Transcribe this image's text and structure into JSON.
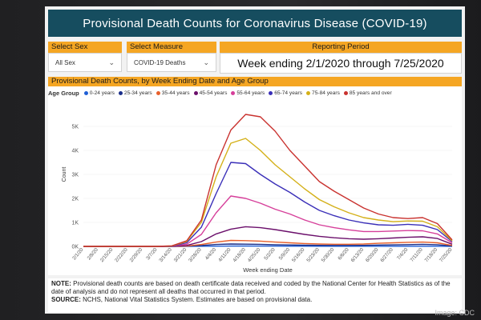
{
  "header": {
    "title": "Provisional Death Counts for Coronavirus Disease (COVID-19)"
  },
  "filters": {
    "sex": {
      "label": "Select Sex",
      "value": "All Sex"
    },
    "measure": {
      "label": "Select Measure",
      "value": "COVID-19 Deaths"
    },
    "period": {
      "label": "Reporting Period",
      "value": "Week ending 2/1/2020 through 7/25/2020"
    }
  },
  "chart_data": {
    "type": "line",
    "title": "Provisional Death Counts, by Week Ending Date and Age Group",
    "legend_title": "Age Group",
    "xlabel": "Week ending Date",
    "ylabel": "Count",
    "ylim": [
      0,
      6000
    ],
    "yticks": [
      {
        "value": 0,
        "label": "0K"
      },
      {
        "value": 1000,
        "label": "1K"
      },
      {
        "value": 2000,
        "label": "2K"
      },
      {
        "value": 3000,
        "label": "3K"
      },
      {
        "value": 4000,
        "label": "4K"
      },
      {
        "value": 5000,
        "label": "5K"
      }
    ],
    "x": [
      "2/1/20",
      "2/8/20",
      "2/15/20",
      "2/22/20",
      "2/29/20",
      "3/7/20",
      "3/14/20",
      "3/21/20",
      "3/28/20",
      "4/4/20",
      "4/11/20",
      "4/18/20",
      "4/25/20",
      "5/2/20",
      "5/9/20",
      "5/16/20",
      "5/23/20",
      "5/30/20",
      "6/6/20",
      "6/13/20",
      "6/20/20",
      "6/27/20",
      "7/4/20",
      "7/11/20",
      "7/18/20",
      "7/25/20"
    ],
    "series": [
      {
        "name": "0-24 years",
        "color": "#1f5fd6",
        "values": [
          0,
          0,
          0,
          0,
          0,
          0,
          0,
          2,
          5,
          10,
          15,
          18,
          15,
          13,
          10,
          10,
          8,
          7,
          6,
          6,
          7,
          8,
          8,
          8,
          7,
          3
        ]
      },
      {
        "name": "25-34 years",
        "color": "#1a2e8a",
        "values": [
          0,
          0,
          0,
          0,
          0,
          0,
          1,
          8,
          35,
          80,
          100,
          95,
          85,
          70,
          60,
          50,
          45,
          40,
          40,
          45,
          55,
          65,
          75,
          85,
          70,
          20
        ]
      },
      {
        "name": "35-44 years",
        "color": "#e8602c",
        "values": [
          0,
          0,
          0,
          0,
          0,
          0,
          2,
          15,
          80,
          180,
          250,
          240,
          220,
          180,
          150,
          120,
          100,
          90,
          90,
          100,
          130,
          150,
          170,
          180,
          150,
          40
        ]
      },
      {
        "name": "45-54 years",
        "color": "#6b0f6b",
        "values": [
          0,
          0,
          0,
          0,
          0,
          0,
          5,
          40,
          200,
          520,
          720,
          820,
          780,
          700,
          600,
          500,
          420,
          360,
          320,
          300,
          320,
          350,
          380,
          400,
          330,
          90
        ]
      },
      {
        "name": "55-64 years",
        "color": "#d63f9a",
        "values": [
          0,
          0,
          0,
          0,
          0,
          0,
          10,
          90,
          500,
          1400,
          2100,
          2000,
          1800,
          1550,
          1350,
          1100,
          900,
          780,
          690,
          620,
          620,
          640,
          660,
          650,
          520,
          150
        ]
      },
      {
        "name": "65-74 years",
        "color": "#3a2fb8",
        "values": [
          0,
          0,
          0,
          0,
          0,
          1,
          15,
          150,
          800,
          2200,
          3500,
          3450,
          3000,
          2600,
          2250,
          1850,
          1500,
          1280,
          1100,
          980,
          900,
          880,
          920,
          880,
          700,
          200
        ]
      },
      {
        "name": "75-84 years",
        "color": "#d4b018",
        "values": [
          0,
          0,
          0,
          0,
          0,
          1,
          20,
          200,
          1000,
          2900,
          4300,
          4500,
          4000,
          3400,
          2900,
          2400,
          1950,
          1650,
          1400,
          1200,
          1100,
          1030,
          1060,
          1050,
          820,
          230
        ]
      },
      {
        "name": "85 years and over",
        "color": "#c9322f",
        "values": [
          0,
          0,
          0,
          0,
          0,
          1,
          25,
          230,
          1100,
          3400,
          4850,
          5500,
          5400,
          4800,
          4000,
          3350,
          2700,
          2300,
          1950,
          1600,
          1350,
          1200,
          1160,
          1200,
          950,
          270
        ]
      }
    ]
  },
  "notes": {
    "note_label": "NOTE:",
    "note_text": " Provisional death counts are based on death certificate data received and coded by the National Center for Health Statistics as of the date of analysis and do not represent all deaths that occurred in that period.",
    "source_label": "SOURCE:",
    "source_text": " NCHS, National Vital Statistics System. Estimates are based on provisional data."
  },
  "credit": "Image: CDC"
}
